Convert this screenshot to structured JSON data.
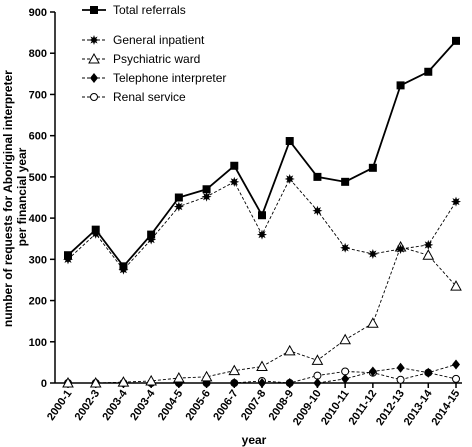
{
  "chart_data": {
    "type": "line",
    "xlabel": "year",
    "ylabel_lines": [
      "number of requests for Aboriginal interpreter",
      "per financial year"
    ],
    "ylim": [
      0,
      900
    ],
    "yticks": [
      0,
      100,
      200,
      300,
      400,
      500,
      600,
      700,
      800,
      900
    ],
    "categories": [
      "2000-1",
      "2002-3",
      "2003-4",
      "2003-4",
      "2004-5",
      "2005-6",
      "2006-7",
      "2007-8",
      "2008-9",
      "2009-10",
      "2010-11",
      "2011-12",
      "2012-13",
      "2013-14",
      "2014-15"
    ],
    "grid": false,
    "legend_position": "top-left",
    "series": [
      {
        "name": "Total referrals",
        "marker": "square",
        "line": "solid",
        "values": [
          310,
          372,
          283,
          360,
          450,
          470,
          527,
          407,
          587,
          500,
          488,
          522,
          722,
          755,
          830
        ]
      },
      {
        "name": "General inpatient",
        "marker": "star",
        "line": "dashed",
        "values": [
          300,
          362,
          275,
          348,
          428,
          452,
          488,
          360,
          495,
          418,
          328,
          313,
          325,
          335,
          440
        ]
      },
      {
        "name": "Psychiatric ward",
        "marker": "triangle-open",
        "line": "dashed",
        "values": [
          0,
          0,
          2,
          5,
          12,
          15,
          30,
          40,
          78,
          55,
          105,
          145,
          330,
          310,
          235
        ]
      },
      {
        "name": "Telephone interpreter",
        "marker": "diamond",
        "line": "dashed",
        "values": [
          0,
          0,
          0,
          0,
          0,
          0,
          0,
          0,
          0,
          0,
          10,
          28,
          37,
          25,
          45
        ]
      },
      {
        "name": "Renal service",
        "marker": "circle-open",
        "line": "dashed",
        "values": [
          0,
          0,
          0,
          0,
          0,
          0,
          0,
          5,
          0,
          18,
          28,
          25,
          8,
          25,
          10
        ]
      }
    ]
  }
}
